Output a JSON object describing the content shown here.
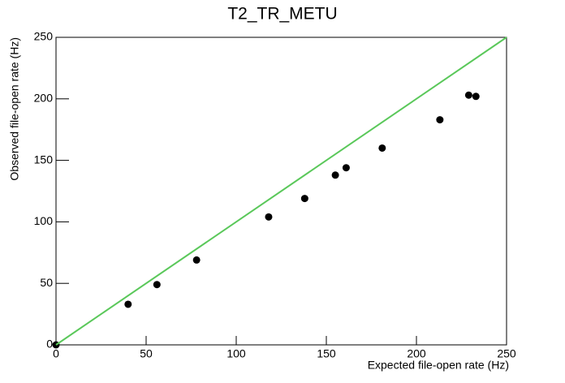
{
  "chart_data": {
    "type": "scatter",
    "title": "T2_TR_METU",
    "x_label": "Expected file-open rate (Hz)",
    "y_label": "Observed file-open rate (Hz)",
    "xlim": [
      0,
      250
    ],
    "ylim": [
      0,
      250
    ],
    "xticks": [
      0,
      50,
      100,
      150,
      200,
      250
    ],
    "yticks": [
      0,
      50,
      100,
      150,
      200,
      250
    ],
    "series": [
      {
        "type": "scatter",
        "color": "#000000",
        "x": [
          0,
          40,
          56,
          78,
          118,
          138,
          155,
          161,
          181,
          213,
          229,
          233
        ],
        "values": [
          0,
          33,
          49,
          69,
          104,
          119,
          138,
          144,
          160,
          183,
          203,
          202
        ]
      },
      {
        "type": "line",
        "color": "#5ac85a",
        "x": [
          0,
          250
        ],
        "values": [
          0,
          250
        ]
      }
    ]
  }
}
